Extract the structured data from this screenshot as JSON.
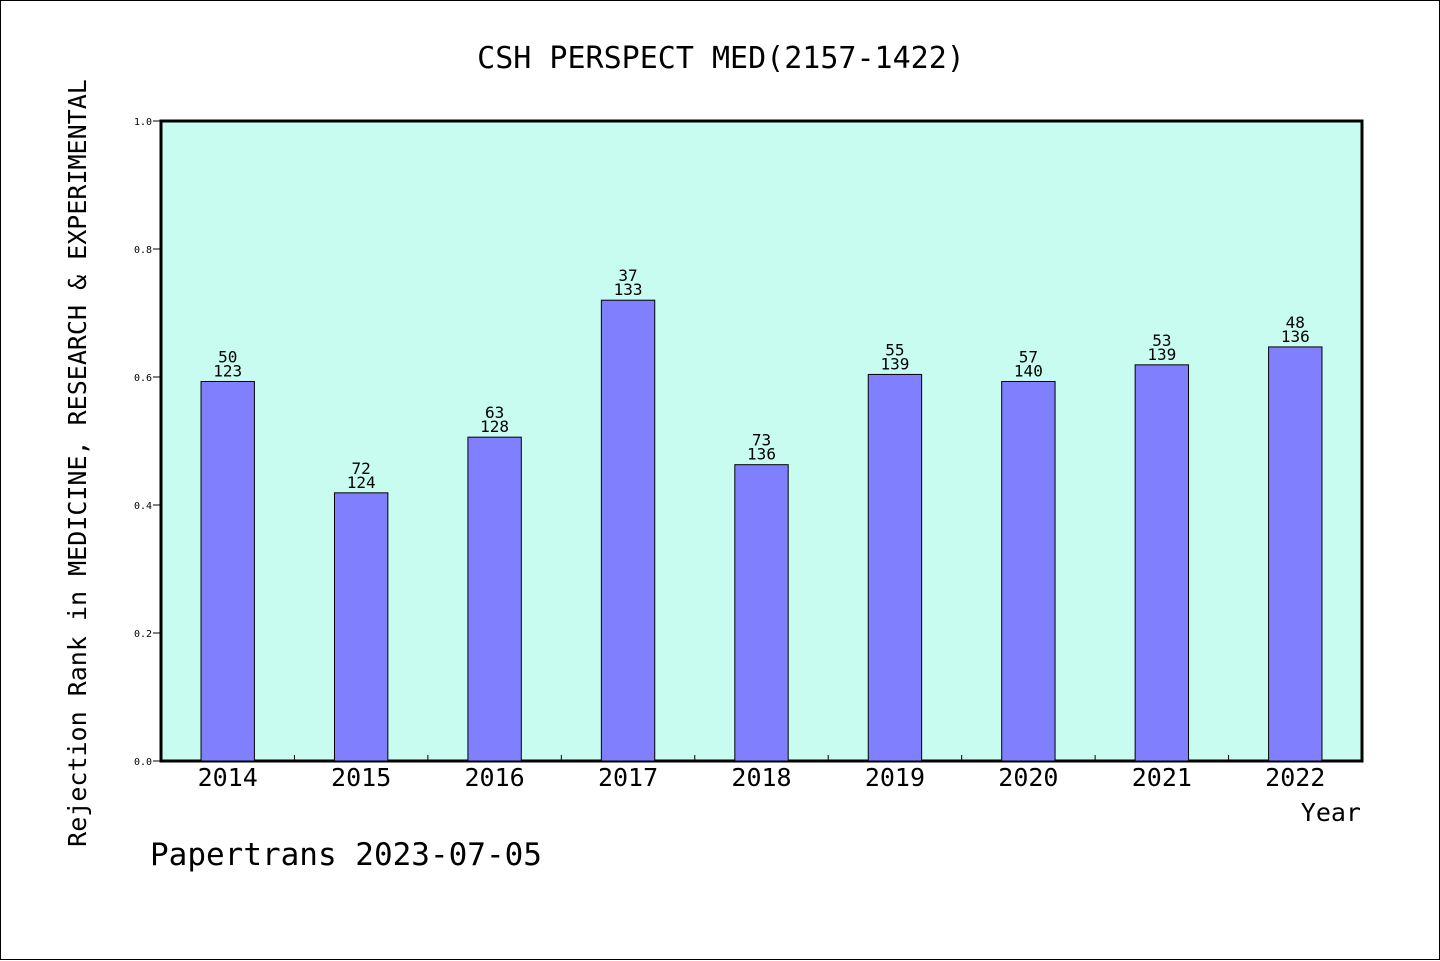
{
  "chart_data": {
    "type": "bar",
    "title": "CSH PERSPECT MED(2157-1422)",
    "xlabel": "Year",
    "ylabel": "Rejection Rank in MEDICINE, RESEARCH & EXPERIMENTAL",
    "categories": [
      "2014",
      "2015",
      "2016",
      "2017",
      "2018",
      "2019",
      "2020",
      "2021",
      "2022"
    ],
    "values": [
      0.593,
      0.419,
      0.506,
      0.72,
      0.463,
      0.604,
      0.593,
      0.619,
      0.647
    ],
    "rank_labels": [
      "50",
      "72",
      "63",
      "37",
      "73",
      "55",
      "57",
      "53",
      "48"
    ],
    "total_labels": [
      "123",
      "124",
      "128",
      "133",
      "136",
      "139",
      "140",
      "139",
      "136"
    ],
    "ylim": [
      0,
      1.0
    ],
    "yticks": [
      0.0,
      0.2,
      0.4,
      0.6,
      0.8,
      1.0
    ],
    "ytick_labels": [
      "0.0",
      "0.2",
      "0.4",
      "0.6",
      "0.8",
      "1.0"
    ],
    "grid": false,
    "colors": {
      "plot_background": "#c8fcf0",
      "bar_fill": "#8080ff",
      "bar_stroke": "#000000"
    }
  },
  "footer": {
    "watermark": "Papertrans 2023-07-05"
  }
}
